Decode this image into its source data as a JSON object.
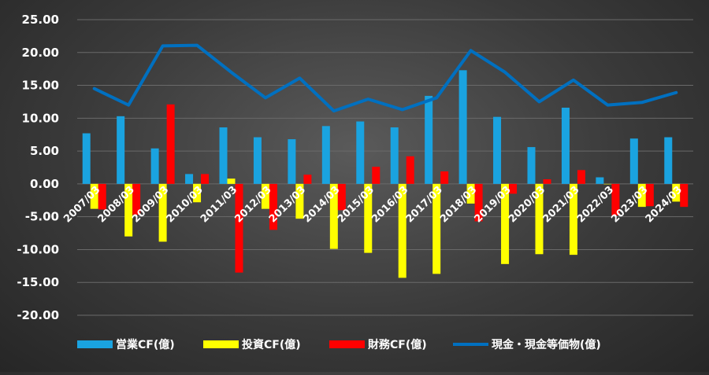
{
  "chart_data": {
    "type": "bar",
    "categories": [
      "2007/03",
      "2008/03",
      "2009/03",
      "2010/03",
      "2011/03",
      "2012/03",
      "2013/03",
      "2014/03",
      "2015/03",
      "2016/03",
      "2017/03",
      "2018/03",
      "2019/03",
      "2020/03",
      "2021/03",
      "2022/03",
      "2023/03",
      "2024/03"
    ],
    "series": [
      {
        "name": "営業CF(億)",
        "kind": "bar",
        "color": "#1aa3e0",
        "values": [
          7.7,
          10.3,
          5.4,
          1.5,
          8.6,
          7.1,
          6.8,
          8.8,
          9.5,
          8.6,
          13.4,
          17.3,
          10.2,
          5.6,
          11.6,
          1.0,
          6.9,
          7.1
        ]
      },
      {
        "name": "投資CF(億)",
        "kind": "bar",
        "color": "#ffff00",
        "values": [
          -3.8,
          -8.0,
          -8.8,
          -2.8,
          0.8,
          -3.8,
          -5.3,
          -9.9,
          -10.5,
          -14.3,
          -13.7,
          -3.0,
          -12.2,
          -10.7,
          -10.8,
          0.0,
          -3.5,
          -2.7
        ]
      },
      {
        "name": "財務CF(億)",
        "kind": "bar",
        "color": "#ff0000",
        "values": [
          -3.9,
          -4.7,
          12.1,
          1.5,
          -13.5,
          -7.0,
          1.4,
          -4.0,
          2.6,
          4.2,
          1.9,
          -5.7,
          -1.5,
          0.7,
          2.1,
          -4.8,
          -3.4,
          -3.5
        ]
      },
      {
        "name": "現金・現金等価物(億)",
        "kind": "line",
        "color": "#0070c0",
        "values": [
          14.5,
          12.0,
          21.0,
          21.1,
          17.0,
          13.1,
          16.1,
          11.1,
          12.9,
          11.3,
          13.1,
          20.3,
          17.0,
          12.5,
          15.8,
          12.0,
          12.4,
          13.9
        ]
      }
    ],
    "ylim": [
      -20,
      25
    ],
    "yticks": [
      "-20.00",
      "-15.00",
      "-10.00",
      "-5.00",
      "0.00",
      "5.00",
      "10.00",
      "15.00",
      "20.00",
      "25.00"
    ],
    "title": "",
    "xlabel": "",
    "ylabel": "",
    "grid": true,
    "legend_position": "bottom"
  }
}
